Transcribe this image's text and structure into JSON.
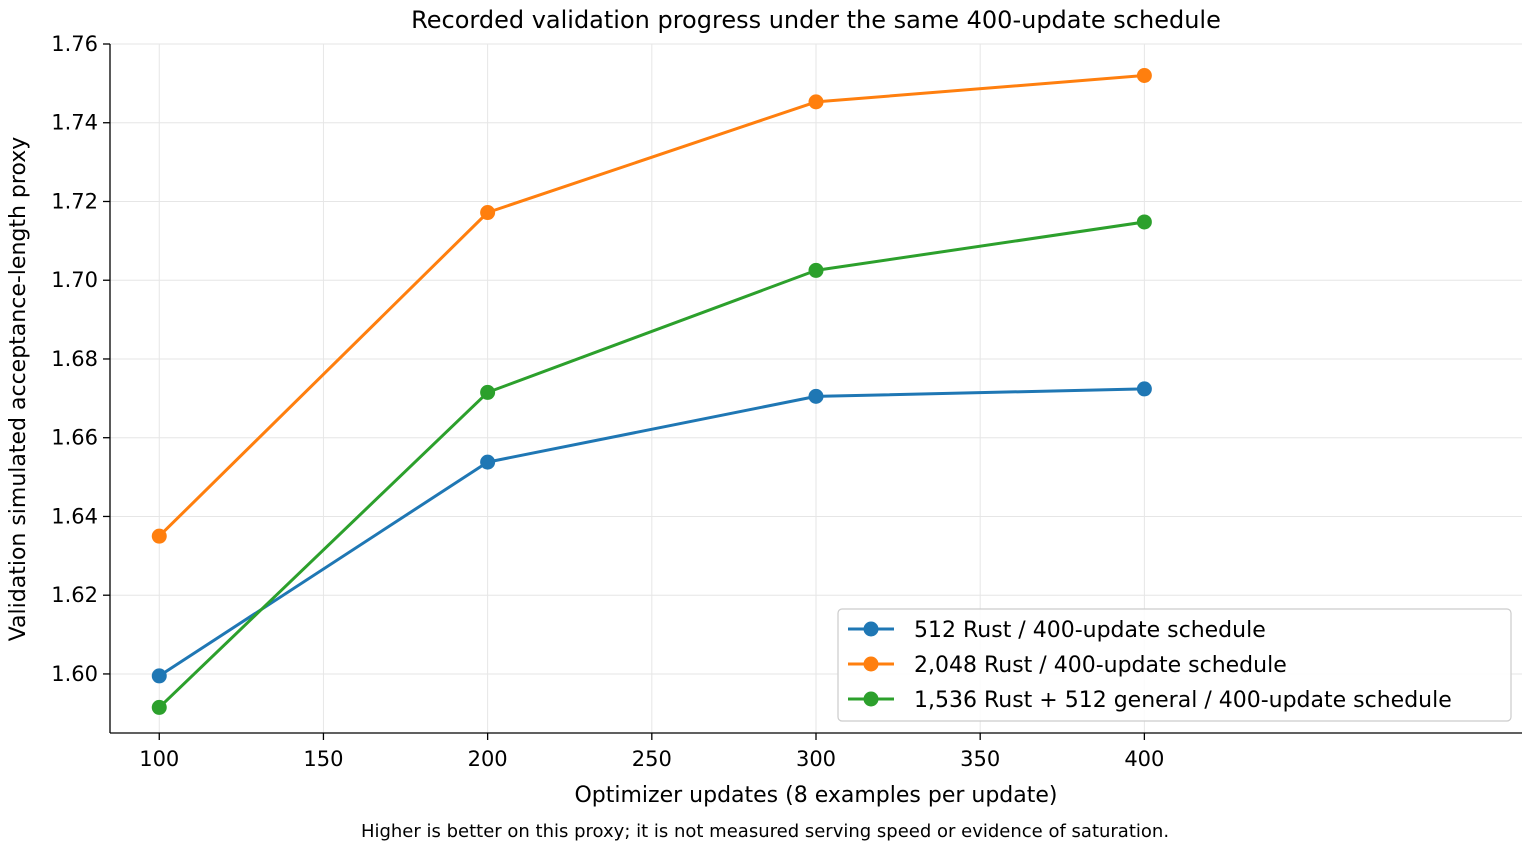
{
  "chart_data": {
    "type": "line",
    "title": "Recorded validation progress under the same 400-update schedule",
    "xlabel": "Optimizer updates (8 examples per update)",
    "ylabel": "Validation simulated acceptance-length proxy",
    "footnote": "Higher is better on this proxy; it is not measured serving speed or evidence of saturation.",
    "xlim": [
      85,
      515
    ],
    "ylim": [
      1.585,
      1.76
    ],
    "xticks": [
      100,
      150,
      200,
      250,
      300,
      350,
      400
    ],
    "yticks": [
      1.6,
      1.62,
      1.64,
      1.66,
      1.68,
      1.7,
      1.72,
      1.74,
      1.76
    ],
    "grid": true,
    "legend_position": "lower-right",
    "series": [
      {
        "name": "512 Rust / 400-update schedule",
        "color": "#1f77b4",
        "x": [
          100,
          200,
          300,
          400
        ],
        "y": [
          1.5995,
          1.6538,
          1.6705,
          1.6724
        ]
      },
      {
        "name": "2,048 Rust / 400-update schedule",
        "color": "#ff7f0e",
        "x": [
          100,
          200,
          300,
          400
        ],
        "y": [
          1.635,
          1.7172,
          1.7453,
          1.752
        ]
      },
      {
        "name": "1,536 Rust + 512 general / 400-update schedule",
        "color": "#2ca02c",
        "x": [
          100,
          200,
          300,
          400
        ],
        "y": [
          1.5915,
          1.6715,
          1.7025,
          1.7148
        ]
      }
    ]
  }
}
